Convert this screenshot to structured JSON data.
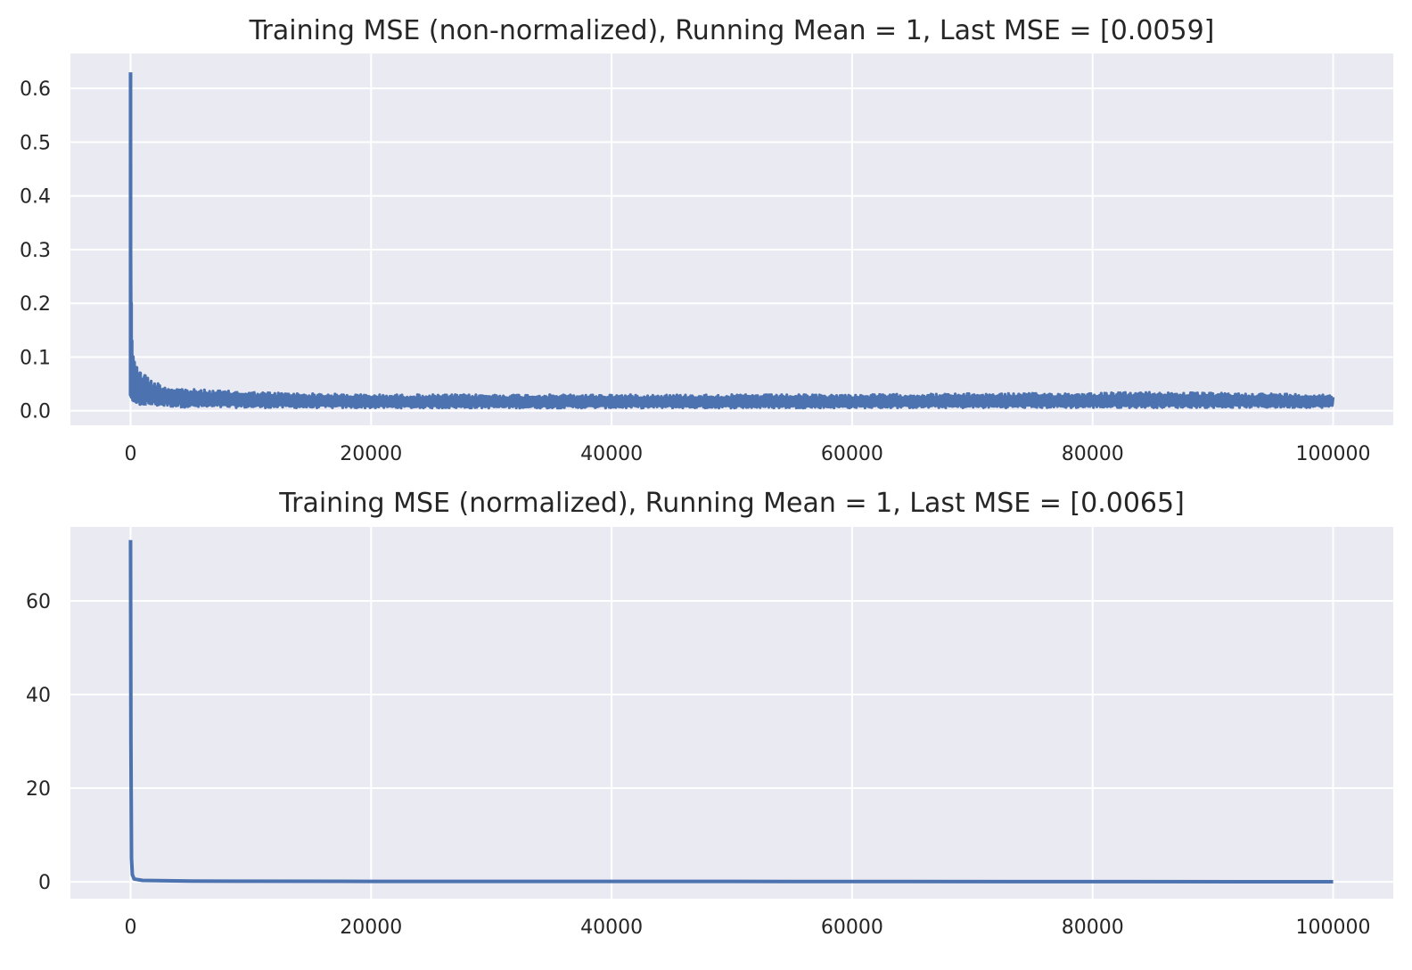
{
  "chart_data": [
    {
      "type": "line",
      "title": "Training MSE (non-normalized), Running Mean = 1, Last MSE = [0.0059]",
      "xlabel": "",
      "ylabel": "",
      "xlim": [
        -5000,
        105000
      ],
      "ylim": [
        -0.027,
        0.665
      ],
      "xticks": [
        0,
        20000,
        40000,
        60000,
        80000,
        100000
      ],
      "xtick_labels": [
        "0",
        "20000",
        "40000",
        "60000",
        "80000",
        "100000"
      ],
      "yticks": [
        0.0,
        0.1,
        0.2,
        0.3,
        0.4,
        0.5,
        0.6
      ],
      "ytick_labels": [
        "0.0",
        "0.1",
        "0.2",
        "0.3",
        "0.4",
        "0.5",
        "0.6"
      ],
      "grid": true,
      "series": [
        {
          "color": "#4c72b0",
          "upper_envelope": {
            "x": [
              0,
              50,
              100,
              200,
              300,
              500,
              800,
              1200,
              2000,
              3000,
              5000,
              7000,
              10000,
              15000,
              20000,
              30000,
              40000,
              50000,
              60000,
              70000,
              80000,
              85000,
              90000,
              95000,
              100000
            ],
            "y": [
              0.63,
              0.2,
              0.13,
              0.1,
              0.09,
              0.08,
              0.07,
              0.065,
              0.055,
              0.045,
              0.04,
              0.038,
              0.035,
              0.032,
              0.03,
              0.03,
              0.03,
              0.03,
              0.03,
              0.032,
              0.033,
              0.035,
              0.033,
              0.032,
              0.03
            ]
          },
          "lower_envelope": {
            "x": [
              0,
              200,
              1000,
              5000,
              20000,
              50000,
              100000
            ],
            "y": [
              0.03,
              0.02,
              0.01,
              0.006,
              0.005,
              0.005,
              0.006
            ]
          }
        }
      ]
    },
    {
      "type": "line",
      "title": "Training MSE (normalized), Running Mean = 1, Last MSE = [0.0065]",
      "xlabel": "",
      "ylabel": "",
      "xlim": [
        -5000,
        105000
      ],
      "ylim": [
        -3.6,
        75.8
      ],
      "xticks": [
        0,
        20000,
        40000,
        60000,
        80000,
        100000
      ],
      "xtick_labels": [
        "0",
        "20000",
        "40000",
        "60000",
        "80000",
        "100000"
      ],
      "yticks": [
        0,
        20,
        40,
        60
      ],
      "ytick_labels": [
        "0",
        "20",
        "40",
        "60"
      ],
      "grid": true,
      "series": [
        {
          "color": "#4c72b0",
          "x": [
            0,
            30,
            80,
            150,
            300,
            1000,
            5000,
            20000,
            50000,
            100000
          ],
          "y": [
            73,
            30,
            5,
            1.5,
            0.6,
            0.3,
            0.15,
            0.1,
            0.08,
            0.0065
          ]
        }
      ]
    }
  ]
}
